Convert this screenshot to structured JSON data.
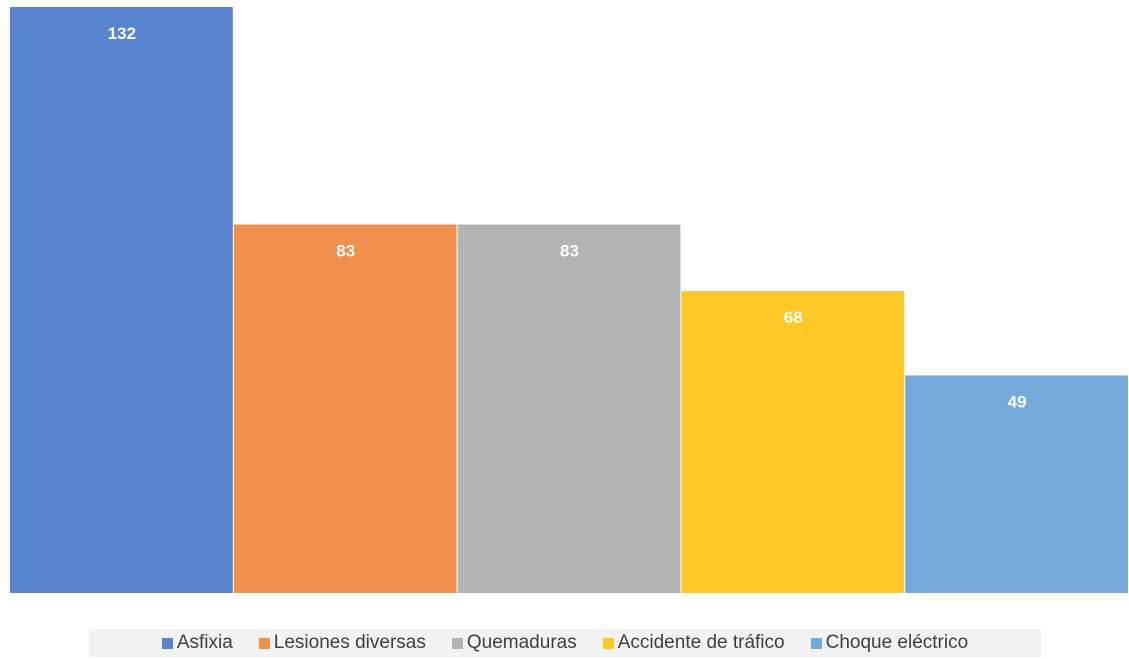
{
  "chart_data": {
    "type": "bar",
    "series": [
      {
        "name": "Asfixia",
        "color": "#5b84ce",
        "values": [
          132
        ]
      },
      {
        "name": "Lesiones diversas",
        "color": "#ef904f",
        "values": [
          83
        ]
      },
      {
        "name": "Quemaduras",
        "color": "#b3b3b3",
        "values": [
          83
        ]
      },
      {
        "name": "Accidente de tráfico",
        "color": "#ffc727",
        "values": [
          68
        ]
      },
      {
        "name": "Choque eléctrico",
        "color": "#75a9da",
        "values": [
          49
        ]
      }
    ]
  }
}
